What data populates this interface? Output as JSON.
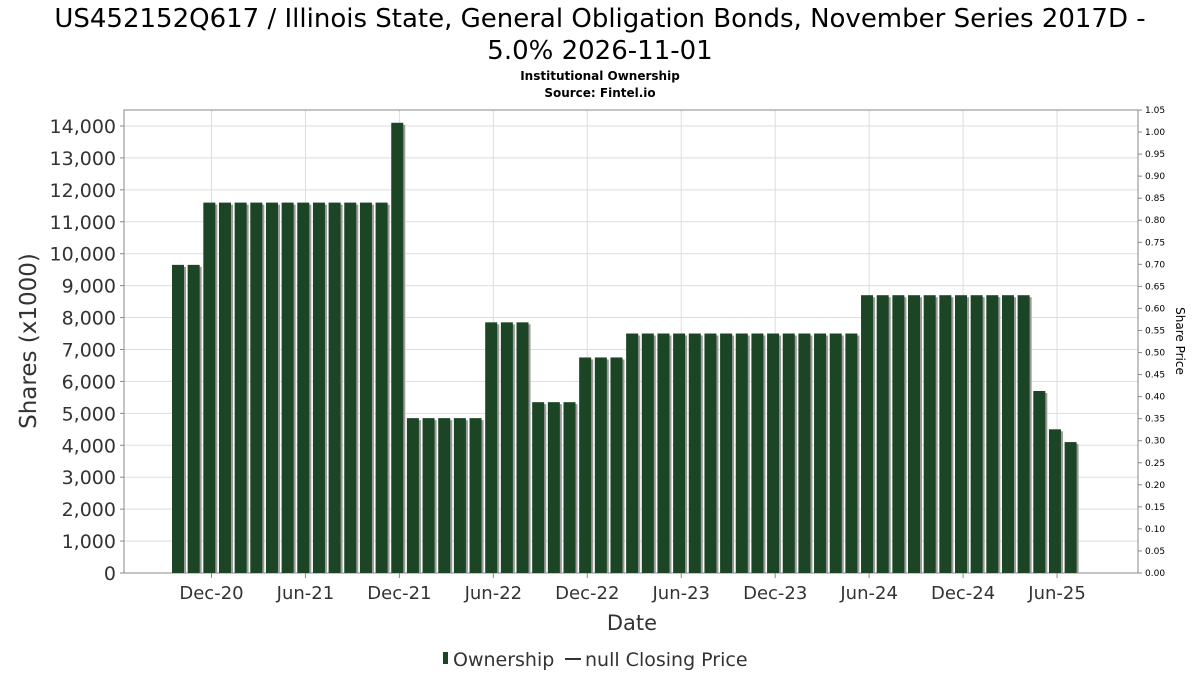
{
  "chart_data": {
    "type": "bar",
    "title_line1": "US452152Q617 / Illinois State, General Obligation Bonds, November Series 2017D -",
    "title_line2": "5.0% 2026-11-01",
    "subtitle": "Institutional Ownership",
    "source": "Source: Fintel.io",
    "xlabel": "Date",
    "ylabel": "Shares (x1000)",
    "y2label": "Share Price",
    "ylim": [
      0,
      14500
    ],
    "y2lim": [
      0,
      1.05
    ],
    "yticks": [
      "0",
      "1,000",
      "2,000",
      "3,000",
      "4,000",
      "5,000",
      "6,000",
      "7,000",
      "8,000",
      "9,000",
      "10,000",
      "11,000",
      "12,000",
      "13,000",
      "14,000"
    ],
    "y2ticks": [
      "0.00",
      "0.05",
      "0.10",
      "0.15",
      "0.20",
      "0.25",
      "0.30",
      "0.35",
      "0.40",
      "0.45",
      "0.50",
      "0.55",
      "0.60",
      "0.65",
      "0.70",
      "0.75",
      "0.80",
      "0.85",
      "0.90",
      "0.95",
      "1.00",
      "1.05"
    ],
    "xticks": [
      "Dec-20",
      "Jun-21",
      "Dec-21",
      "Jun-22",
      "Dec-22",
      "Jun-23",
      "Dec-23",
      "Jun-24",
      "Dec-24",
      "Jun-25"
    ],
    "series": [
      {
        "name": "Ownership",
        "color": "#1b4524",
        "values": [
          9650,
          9650,
          11600,
          11600,
          11600,
          11600,
          11600,
          11600,
          11600,
          11600,
          11600,
          11600,
          11600,
          11600,
          14100,
          4850,
          4850,
          4850,
          4850,
          4850,
          7850,
          7850,
          7850,
          5350,
          5350,
          5350,
          6750,
          6750,
          6750,
          7500,
          7500,
          7500,
          7500,
          7500,
          7500,
          7500,
          7500,
          7500,
          7500,
          7500,
          7500,
          7500,
          7500,
          7500,
          8700,
          8700,
          8700,
          8700,
          8700,
          8700,
          8700,
          8700,
          8700,
          8700,
          8700,
          5700,
          4500,
          4100
        ]
      }
    ],
    "legend": [
      "Ownership",
      "null Closing Price"
    ],
    "legend_position": "bottom-center",
    "grid": true
  }
}
